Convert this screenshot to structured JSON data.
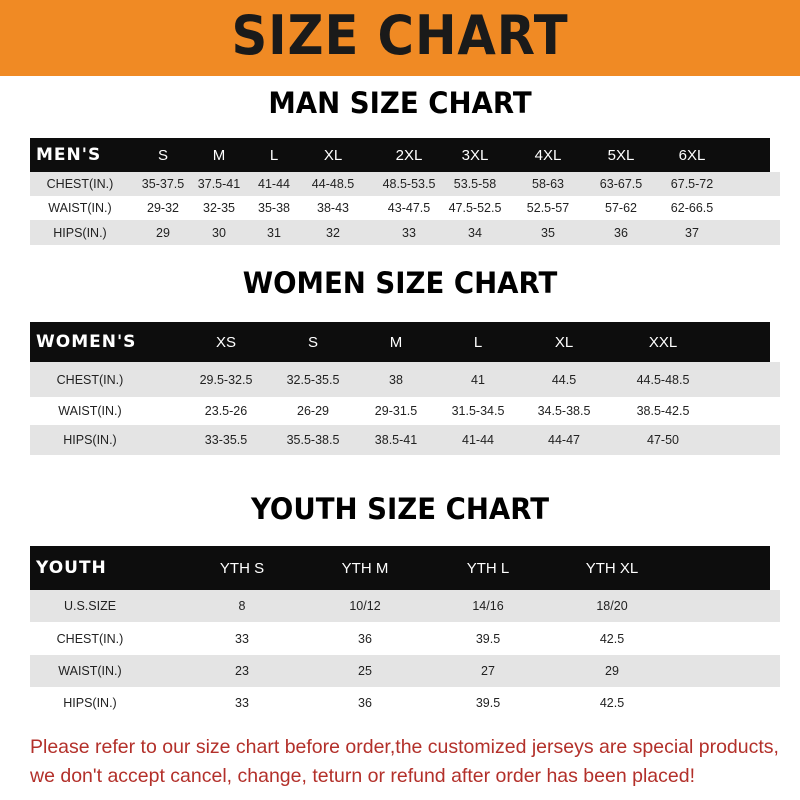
{
  "title": "SIZE CHART",
  "colors": {
    "banner": "#f08a24",
    "header_row": "#0d0d0d",
    "stripe": "#e4e4e4",
    "notice": "#b3302a"
  },
  "men": {
    "heading": "MAN SIZE CHART",
    "columns": [
      "MEN'S",
      "S",
      "M",
      "L",
      "XL",
      "2XL",
      "3XL",
      "4XL",
      "5XL",
      "6XL"
    ],
    "rows": [
      [
        "CHEST(IN.)",
        "35-37.5",
        "37.5-41",
        "41-44",
        "44-48.5",
        "48.5-53.5",
        "53.5-58",
        "58-63",
        "63-67.5",
        "67.5-72"
      ],
      [
        "WAIST(IN.)",
        "29-32",
        "32-35",
        "35-38",
        "38-43",
        "43-47.5",
        "47.5-52.5",
        "52.5-57",
        "57-62",
        "62-66.5"
      ],
      [
        "HIPS(IN.)",
        "29",
        "30",
        "31",
        "32",
        "33",
        "34",
        "35",
        "36",
        "37"
      ]
    ]
  },
  "women": {
    "heading": "WOMEN SIZE CHART",
    "columns": [
      "WOMEN'S",
      "XS",
      "S",
      "M",
      "L",
      "XL",
      "XXL"
    ],
    "rows": [
      [
        "CHEST(IN.)",
        "29.5-32.5",
        "32.5-35.5",
        "38",
        "41",
        "44.5",
        "44.5-48.5"
      ],
      [
        "WAIST(IN.)",
        "23.5-26",
        "26-29",
        "29-31.5",
        "31.5-34.5",
        "34.5-38.5",
        "38.5-42.5"
      ],
      [
        "HIPS(IN.)",
        "33-35.5",
        "35.5-38.5",
        "38.5-41",
        "41-44",
        "44-47",
        "47-50"
      ]
    ]
  },
  "youth": {
    "heading": "YOUTH SIZE CHART",
    "columns": [
      "YOUTH",
      "YTH S",
      "YTH M",
      "YTH L",
      "YTH XL"
    ],
    "rows": [
      [
        "U.S.SIZE",
        "8",
        "10/12",
        "14/16",
        "18/20"
      ],
      [
        "CHEST(IN.)",
        "33",
        "36",
        "39.5",
        "42.5"
      ],
      [
        "WAIST(IN.)",
        "23",
        "25",
        "27",
        "29"
      ],
      [
        "HIPS(IN.)",
        "33",
        "36",
        "39.5",
        "42.5"
      ]
    ]
  },
  "notice": {
    "line1": "Please refer to our size chart before order,the customized jerseys are special products,",
    "line2": "we don't accept cancel, change, teturn or refund after order has been placed!"
  }
}
